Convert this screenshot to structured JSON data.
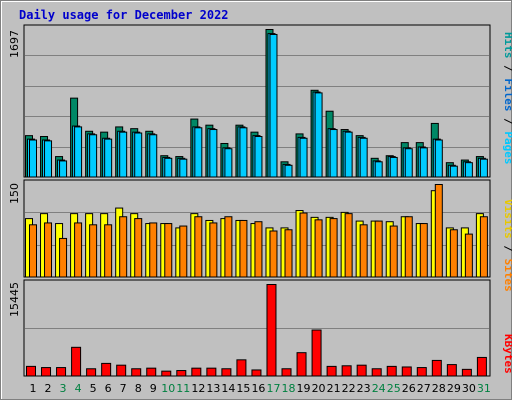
{
  "title": "Daily usage for December 2022",
  "colors": {
    "pages": "#008866",
    "files": "#00ccff",
    "hits": "#009999",
    "visits": "#ffff00",
    "sites": "#ff8000",
    "kbytes": "#ff0000",
    "weekday_label": "#000000",
    "weekend_label": "#008040"
  },
  "chart_data": [
    {
      "type": "bar",
      "title": "Hits / Files / Pages",
      "max_label": "1697",
      "legend": {
        "pages": "Pages",
        "sep1": " / ",
        "files": "Files",
        "sep2": " / ",
        "hits": "Hits"
      },
      "categories": [
        "1",
        "2",
        "3",
        "4",
        "5",
        "6",
        "7",
        "8",
        "9",
        "10",
        "11",
        "12",
        "13",
        "14",
        "15",
        "16",
        "17",
        "18",
        "19",
        "20",
        "21",
        "22",
        "23",
        "24",
        "25",
        "26",
        "27",
        "28",
        "29",
        "30",
        "31"
      ],
      "series": [
        {
          "name": "Hits",
          "values": [
            480,
            470,
            240,
            910,
            530,
            520,
            580,
            560,
            530,
            250,
            240,
            670,
            600,
            390,
            600,
            520,
            1697,
            180,
            500,
            1000,
            760,
            550,
            480,
            220,
            250,
            400,
            400,
            620,
            170,
            200,
            240
          ]
        },
        {
          "name": "Files",
          "values": [
            440,
            430,
            200,
            590,
            500,
            450,
            530,
            520,
            500,
            230,
            220,
            580,
            560,
            340,
            580,
            480,
            1650,
            150,
            460,
            980,
            560,
            530,
            460,
            190,
            240,
            340,
            350,
            440,
            140,
            180,
            220
          ]
        },
        {
          "name": "Pages",
          "values": [
            430,
            420,
            190,
            580,
            490,
            440,
            520,
            510,
            490,
            220,
            210,
            570,
            550,
            330,
            570,
            470,
            1640,
            140,
            450,
            970,
            550,
            520,
            450,
            180,
            230,
            330,
            340,
            430,
            130,
            170,
            210
          ]
        }
      ]
    },
    {
      "type": "bar",
      "title": "Visits / Sites",
      "max_label": "150",
      "legend": {
        "sites": "Sites",
        "sep": " / ",
        "visits": "Visits"
      },
      "categories": [
        "1",
        "2",
        "3",
        "4",
        "5",
        "6",
        "7",
        "8",
        "9",
        "10",
        "11",
        "12",
        "13",
        "14",
        "15",
        "16",
        "17",
        "18",
        "19",
        "20",
        "21",
        "22",
        "23",
        "24",
        "25",
        "26",
        "27",
        "28",
        "29",
        "30",
        "31"
      ],
      "series": [
        {
          "name": "Visits",
          "values": [
            95,
            103,
            87,
            103,
            103,
            103,
            112,
            103,
            87,
            87,
            80,
            103,
            92,
            95,
            92,
            87,
            80,
            80,
            108,
            97,
            97,
            105,
            91,
            91,
            90,
            98,
            87,
            140,
            80,
            80,
            103
          ]
        },
        {
          "name": "Sites",
          "values": [
            85,
            88,
            63,
            88,
            85,
            85,
            98,
            95,
            88,
            87,
            83,
            98,
            88,
            98,
            92,
            90,
            75,
            77,
            104,
            93,
            95,
            103,
            85,
            91,
            83,
            98,
            87,
            150,
            77,
            70,
            98
          ]
        }
      ]
    },
    {
      "type": "bar",
      "title": "KBytes",
      "max_label": "15445",
      "legend": {
        "kbytes": "KBytes"
      },
      "categories": [
        "1",
        "2",
        "3",
        "4",
        "5",
        "6",
        "7",
        "8",
        "9",
        "10",
        "11",
        "12",
        "13",
        "14",
        "15",
        "16",
        "17",
        "18",
        "19",
        "20",
        "21",
        "22",
        "23",
        "24",
        "25",
        "26",
        "27",
        "28",
        "29",
        "30",
        "31"
      ],
      "series": [
        {
          "name": "KBytes",
          "values": [
            1700,
            1500,
            1500,
            4900,
            1300,
            2200,
            1900,
            1300,
            1400,
            900,
            1000,
            1400,
            1400,
            1300,
            2800,
            1100,
            15445,
            1300,
            4000,
            7800,
            1700,
            1800,
            1900,
            1300,
            1700,
            1600,
            1500,
            2700,
            2000,
            1200,
            3200
          ]
        }
      ]
    }
  ],
  "weekend_days": [
    3,
    4,
    10,
    11,
    17,
    18,
    24,
    25,
    31
  ]
}
